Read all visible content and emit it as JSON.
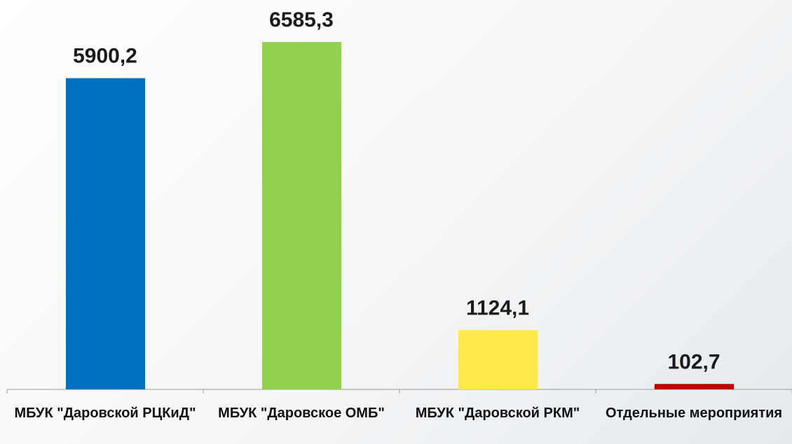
{
  "chart_data": {
    "type": "bar",
    "categories": [
      "МБУК \"Даровской РЦКиД\"",
      "МБУК \"Даровское ОМБ\"",
      "МБУК \"Даровской РКМ\"",
      "Отдельные мероприятия"
    ],
    "values": [
      5900.2,
      6585.3,
      1124.1,
      102.7
    ],
    "value_labels": [
      "5900,2",
      "6585,3",
      "1124,1",
      "102,7"
    ],
    "colors": [
      "#0070c0",
      "#92d050",
      "#ffe84a",
      "#c00000"
    ]
  }
}
